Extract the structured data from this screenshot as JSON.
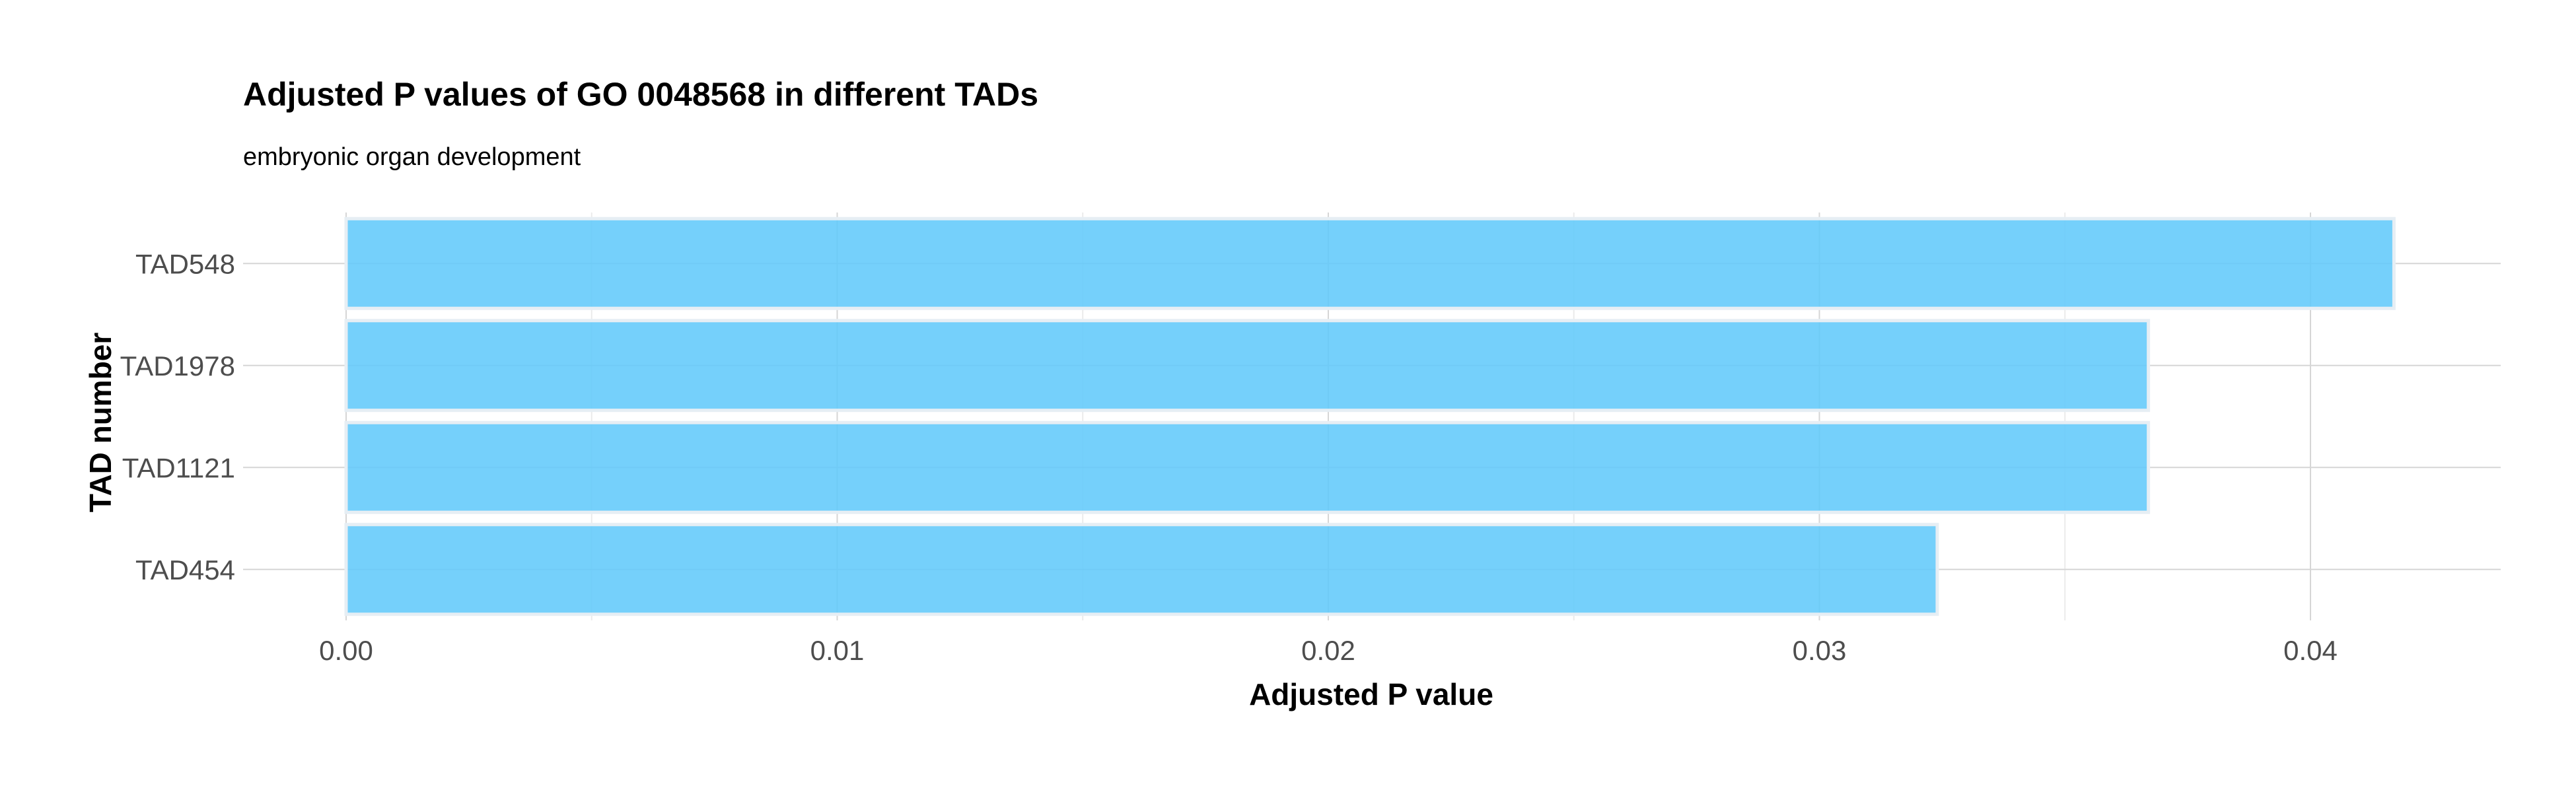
{
  "chart_data": {
    "type": "bar",
    "orientation": "horizontal",
    "title": "Adjusted P values of GO 0048568 in different TADs",
    "subtitle": "embryonic organ development",
    "xlabel": "Adjusted P value",
    "ylabel": "TAD number",
    "categories": [
      "TAD548",
      "TAD1978",
      "TAD1121",
      "TAD454"
    ],
    "values": [
      0.0417,
      0.0367,
      0.0367,
      0.0324
    ],
    "xlim": [
      0,
      0.044
    ],
    "xticks": [
      0,
      0.01,
      0.02,
      0.03,
      0.04
    ],
    "xtick_labels": [
      "0.00",
      "0.01",
      "0.02",
      "0.03",
      "0.04"
    ],
    "grid": true,
    "colors": {
      "bar_fill": "#62c9fb",
      "bar_stroke": "#e6eef4",
      "grid_major": "#d6d6d6",
      "grid_minor": "#ebebeb"
    }
  }
}
